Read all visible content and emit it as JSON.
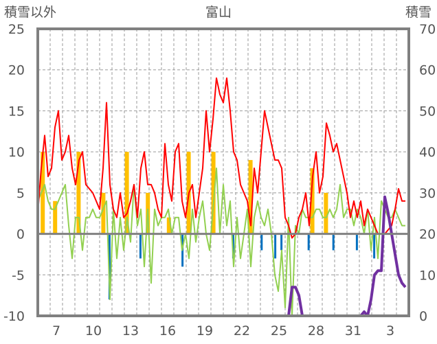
{
  "chart_data": {
    "type": "line",
    "title": "富山",
    "ylabel_left": "積雪以外",
    "ylabel_right": "積雪",
    "ylim_left": [
      -10,
      25
    ],
    "ylim_right": [
      0,
      70
    ],
    "yticks_left": [
      "25",
      "20",
      "15",
      "10",
      "5",
      "0",
      "-5",
      "-10"
    ],
    "yticks_right": [
      "70",
      "60",
      "50",
      "40",
      "30",
      "20",
      "10",
      "0"
    ],
    "xlim_days": [
      0,
      30
    ],
    "xtick_labels": [
      {
        "day": 1.5,
        "label": "7"
      },
      {
        "day": 4.5,
        "label": "10"
      },
      {
        "day": 7.5,
        "label": "13"
      },
      {
        "day": 10.5,
        "label": "16"
      },
      {
        "day": 13.5,
        "label": "19"
      },
      {
        "day": 16.5,
        "label": "22"
      },
      {
        "day": 19.5,
        "label": "25"
      },
      {
        "day": 22.5,
        "label": "28"
      },
      {
        "day": 25.5,
        "label": "31"
      },
      {
        "day": 28.5,
        "label": "3"
      }
    ],
    "grid": true,
    "sample_step_days": 0.2778,
    "colors": {
      "red": "#ff0000",
      "green": "#92d050",
      "purple": "#7030a0",
      "orange": "#ffc000",
      "blue": "#0070c0",
      "axis": "#808080"
    },
    "series": [
      {
        "name": "red",
        "axis": "left",
        "values": [
          2.5,
          8,
          12,
          7,
          8,
          13,
          15,
          9,
          10,
          12,
          8,
          6,
          9,
          10,
          6,
          5.5,
          5,
          4,
          3,
          8,
          16,
          6,
          3,
          2,
          5,
          2,
          2.5,
          4,
          6,
          2,
          8,
          10,
          6,
          6,
          5,
          3,
          2,
          11,
          6,
          4,
          10,
          11,
          4,
          2,
          5,
          6,
          2,
          5,
          8,
          15,
          10,
          14,
          19,
          17,
          16,
          19,
          15,
          10,
          9,
          6,
          5,
          4,
          1,
          8,
          5,
          10,
          15,
          13,
          11,
          9,
          9,
          8,
          2,
          1,
          -0.5,
          0,
          2,
          3,
          5,
          1,
          7,
          10,
          5,
          7,
          13.5,
          12,
          10,
          11,
          9,
          7,
          5,
          2,
          4,
          2,
          4,
          1,
          3,
          2,
          1,
          0,
          0,
          0,
          0.5,
          1,
          3,
          5.5,
          4,
          4
        ]
      },
      {
        "name": "green",
        "axis": "left",
        "values": [
          4,
          5,
          6,
          4,
          3,
          3,
          4,
          5,
          6,
          1,
          -3,
          2,
          2,
          -2,
          2,
          2,
          3,
          2,
          2,
          3,
          4,
          -8,
          3,
          -3,
          2,
          -2,
          2,
          -1,
          6,
          1,
          3,
          -4,
          3,
          -6,
          3,
          1,
          2,
          2,
          3,
          0,
          2,
          2,
          -2,
          0,
          -3,
          3,
          -1,
          2,
          4,
          0,
          -2,
          3,
          8,
          0,
          6,
          1,
          4,
          -4,
          2,
          -3,
          0,
          3,
          -4,
          2,
          4,
          2,
          1,
          3,
          0,
          -5,
          -7,
          -2,
          -9,
          2,
          -10,
          1,
          0,
          3,
          2,
          2,
          2,
          3,
          3,
          2,
          2,
          3,
          2,
          3,
          6,
          2,
          3,
          3,
          1,
          3,
          2,
          0,
          3,
          -2,
          2,
          -3,
          4,
          3,
          2,
          2,
          3,
          2,
          1,
          1
        ]
      },
      {
        "name": "purple",
        "axis": "right",
        "values": [
          0,
          0,
          0,
          0,
          0,
          0,
          0,
          0,
          0,
          0,
          0,
          0,
          0,
          0,
          0,
          0,
          0,
          0,
          0,
          0,
          0,
          0,
          0,
          0,
          0,
          0,
          0,
          0,
          0,
          0,
          0,
          0,
          0,
          0,
          0,
          0,
          0,
          0,
          0,
          0,
          0,
          0,
          0,
          0,
          0,
          0,
          0,
          0,
          0,
          0,
          0,
          0,
          0,
          0,
          0,
          0,
          0,
          0,
          0,
          0,
          0,
          0,
          0,
          0,
          0,
          0,
          0,
          0,
          0,
          0,
          0,
          0,
          0,
          0,
          7,
          7,
          5,
          0,
          0,
          0,
          0,
          0,
          0,
          0,
          0,
          0,
          0,
          0,
          0,
          0,
          0,
          0,
          0,
          0,
          0,
          1,
          0,
          4,
          10,
          11,
          11,
          29,
          25,
          20,
          15,
          10,
          8,
          7
        ]
      }
    ],
    "bars_orange": [
      [
        0.4,
        10
      ],
      [
        1.4,
        4
      ],
      [
        3.3,
        10
      ],
      [
        5.3,
        5
      ],
      [
        7.2,
        10
      ],
      [
        8.9,
        5
      ],
      [
        10.6,
        2
      ],
      [
        12.2,
        10
      ],
      [
        14.2,
        10
      ],
      [
        17.2,
        9
      ],
      [
        22.2,
        8
      ],
      [
        23.3,
        5
      ]
    ],
    "bars_blue": [
      [
        5.8,
        -8
      ],
      [
        8.3,
        -3
      ],
      [
        11.7,
        -4
      ],
      [
        15.8,
        -3
      ],
      [
        18.1,
        -2
      ],
      [
        19.2,
        -3
      ],
      [
        19.7,
        -2
      ],
      [
        21.9,
        -2
      ],
      [
        23.9,
        -2
      ],
      [
        25.8,
        -2
      ],
      [
        27.2,
        -3
      ]
    ]
  }
}
